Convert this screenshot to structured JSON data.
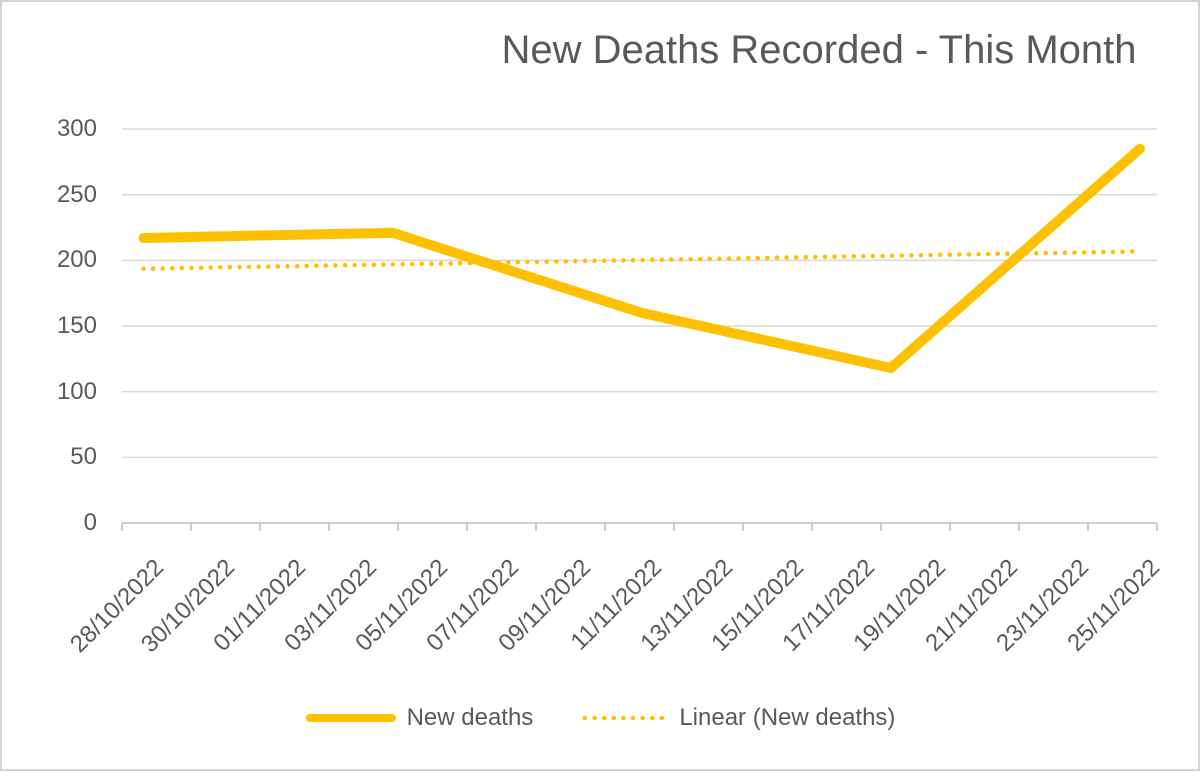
{
  "chart_data": {
    "type": "line",
    "title": "New Deaths Recorded - This Month",
    "x_tick_labels": [
      "28/10/2022",
      "30/10/2022",
      "01/11/2022",
      "03/11/2022",
      "05/11/2022",
      "07/11/2022",
      "09/11/2022",
      "11/11/2022",
      "13/11/2022",
      "15/11/2022",
      "17/11/2022",
      "19/11/2022",
      "21/11/2022",
      "23/11/2022",
      "25/11/2022"
    ],
    "x_label_step_days": 2,
    "x_span_days": 28,
    "series": [
      {
        "name": "New deaths",
        "days": [
          0,
          7,
          14,
          21,
          28
        ],
        "dates": [
          "28/10/2022",
          "04/11/2022",
          "11/11/2022",
          "18/11/2022",
          "25/11/2022"
        ],
        "values": [
          217,
          221,
          160,
          118,
          285
        ]
      }
    ],
    "trendline": {
      "name": "Linear (New deaths)",
      "start_value": 193.6,
      "end_value": 206.8
    },
    "yticks": [
      0,
      50,
      100,
      150,
      200,
      250,
      300
    ],
    "ylim": [
      0,
      300
    ],
    "grid": true,
    "legend_position": "bottom"
  },
  "colors": {
    "series": "#FFC000",
    "trendline": "#FFC000",
    "title_text": "#595959",
    "label_text": "#595959",
    "gridline": "#D9D9D9",
    "axis": "#BFBFBF",
    "frame_border": "#D4D4D7",
    "background": "#FFFFFF"
  }
}
